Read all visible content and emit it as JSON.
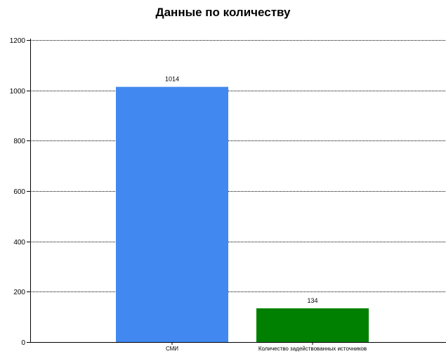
{
  "chart_data": {
    "type": "bar",
    "title": "Данные по количеству",
    "xlabel": "",
    "ylabel": "",
    "categories": [
      "СМИ",
      "Количество задействованных источников"
    ],
    "values": [
      1014,
      134
    ],
    "data_labels": [
      "1014",
      "134"
    ],
    "colors": [
      "#4189f0",
      "#008000"
    ],
    "ylim": [
      0,
      1200
    ],
    "yticks": [
      0,
      200,
      400,
      600,
      800,
      1000,
      1200
    ],
    "ytick_labels": [
      "0",
      "200",
      "400",
      "600",
      "800",
      "1000",
      "1200"
    ],
    "grid": "horizontal dotted",
    "legend": "none"
  }
}
